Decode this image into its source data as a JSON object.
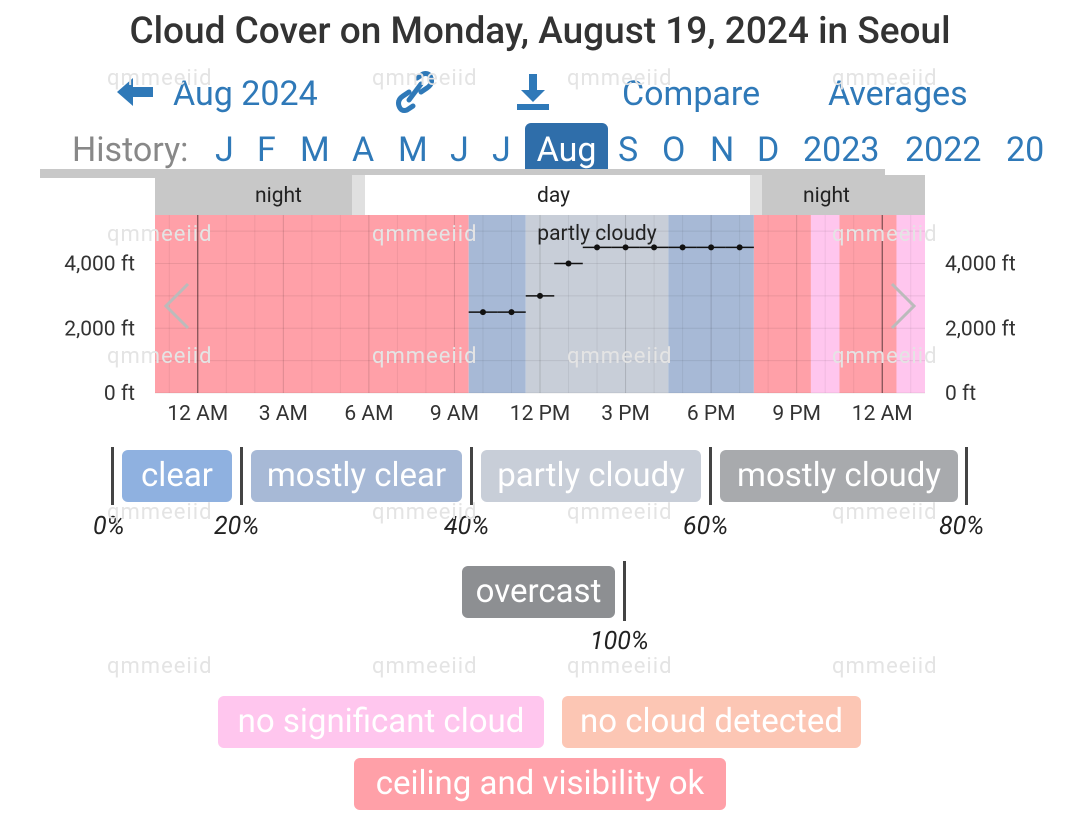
{
  "title": "Cloud Cover on Monday, August 19, 2024 in Seoul",
  "nav": {
    "prev_label": "Aug 2024",
    "compare_label": "Compare",
    "averages_label": "Averages"
  },
  "history": {
    "label": "History:",
    "months": [
      "J",
      "F",
      "M",
      "A",
      "M",
      "J",
      "J",
      "Aug",
      "S",
      "O",
      "N",
      "D"
    ],
    "selected_index": 7,
    "years": [
      "2023",
      "2022",
      "20"
    ]
  },
  "day_night": {
    "segments": [
      "night",
      "day",
      "night"
    ]
  },
  "chart_data": {
    "type": "step-line",
    "title": "",
    "annotation": "partly cloudy",
    "x_tick_labels": [
      "12 AM",
      "3 AM",
      "6 AM",
      "9 AM",
      "12 PM",
      "3 PM",
      "6 PM",
      "9 PM",
      "12 AM"
    ],
    "y_tick_labels": [
      "0 ft",
      "2,000 ft",
      "4,000 ft"
    ],
    "ylim": [
      0,
      5500
    ],
    "xlim_hours": [
      -1.5,
      25.5
    ],
    "background_bands": [
      {
        "from": -1.5,
        "to": 9.5,
        "category": "ceiling and visibility ok"
      },
      {
        "from": 9.5,
        "to": 11.5,
        "category": "mostly clear"
      },
      {
        "from": 11.5,
        "to": 16.5,
        "category": "partly cloudy"
      },
      {
        "from": 16.5,
        "to": 19.5,
        "category": "mostly clear"
      },
      {
        "from": 19.5,
        "to": 21.5,
        "category": "ceiling and visibility ok"
      },
      {
        "from": 21.5,
        "to": 22.5,
        "category": "no significant cloud"
      },
      {
        "from": 22.5,
        "to": 24.5,
        "category": "ceiling and visibility ok"
      },
      {
        "from": 24.5,
        "to": 25.5,
        "category": "no significant cloud"
      }
    ],
    "series": [
      {
        "points": [
          {
            "from": 9.5,
            "to": 10.5,
            "value": 2500
          },
          {
            "from": 10.5,
            "to": 11.5,
            "value": 2500
          },
          {
            "from": 11.5,
            "to": 12.5,
            "value": 3000
          },
          {
            "from": 12.5,
            "to": 13.5,
            "value": 4000
          },
          {
            "from": 13.5,
            "to": 14.5,
            "value": 4500
          },
          {
            "from": 14.5,
            "to": 15.5,
            "value": 4500
          },
          {
            "from": 15.5,
            "to": 16.5,
            "value": 4500
          },
          {
            "from": 16.5,
            "to": 17.5,
            "value": 4500
          },
          {
            "from": 17.5,
            "to": 18.5,
            "value": 4500
          },
          {
            "from": 18.5,
            "to": 19.5,
            "value": 4500
          }
        ]
      }
    ]
  },
  "coverage_legend": {
    "categories": [
      "clear",
      "mostly clear",
      "partly cloudy",
      "mostly cloudy",
      "overcast"
    ],
    "thresholds": [
      "0%",
      "20%",
      "40%",
      "60%",
      "80%",
      "100%"
    ]
  },
  "other_legend": [
    "no significant cloud",
    "no cloud detected",
    "ceiling and visibility ok"
  ],
  "watermark": "qmmeeiid",
  "colors": {
    "accent": "#2f79b8",
    "ceiling_ok": "#ffa0a8",
    "mostly_clear": "#a7b9d6",
    "partly_cloudy": "#c8ced8",
    "no_significant_cloud": "#ffc6ee",
    "clear": "#8fb1e0",
    "mostly_cloudy": "#a8aaad",
    "overcast": "#8d8f92",
    "no_cloud_detected": "#fcc6b4"
  }
}
